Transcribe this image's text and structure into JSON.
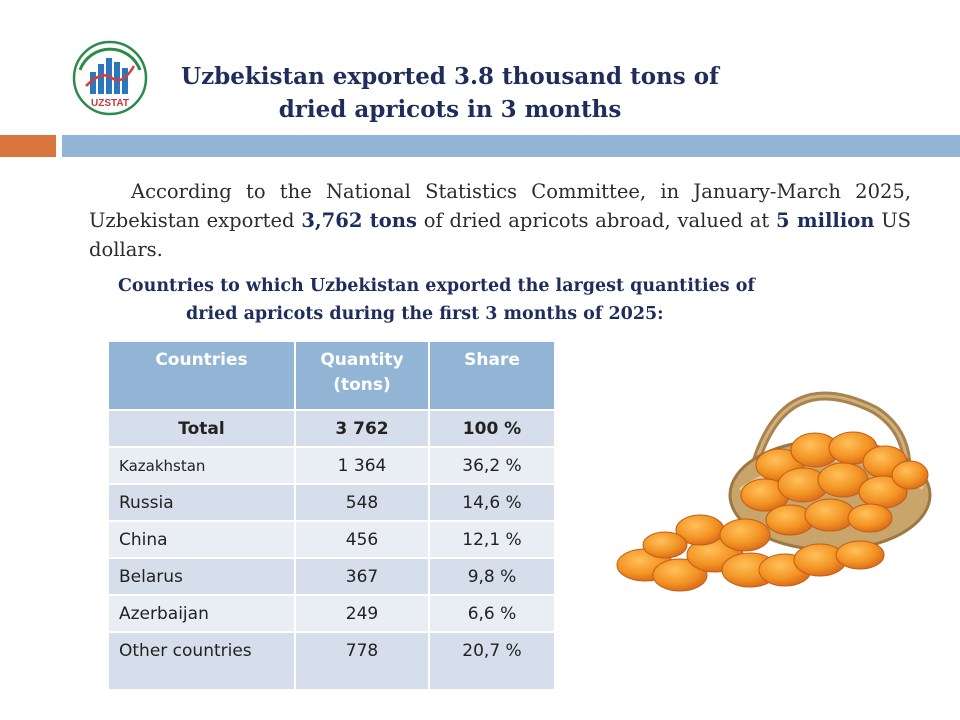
{
  "logo": {
    "text": "UZSTAT"
  },
  "title": "Uzbekistan exported 3.8 thousand tons of dried apricots in 3 months",
  "intro": {
    "part1": "According to the National Statistics Committee, in January-March 2025, Uzbekistan exported ",
    "amount": "3,762 tons",
    "part2": " of dried apricots abroad, valued at ",
    "value": "5 million",
    "part3": " US dollars."
  },
  "subtitle": {
    "line1": "Countries to which Uzbekistan exported the largest quantities of",
    "line2": "dried apricots during the first 3 months of 2025:"
  },
  "table": {
    "headers": [
      "Countries",
      "Quantity (tons)",
      "Share"
    ],
    "total": {
      "country": "Total",
      "quantity": "3 762",
      "share": "100 %"
    },
    "rows": [
      {
        "country": "Kazakhstan",
        "quantity": "1 364",
        "share": "36,2 %"
      },
      {
        "country": "Russia",
        "quantity": "548",
        "share": "14,6 %"
      },
      {
        "country": "China",
        "quantity": "456",
        "share": "12,1 %"
      },
      {
        "country": "Belarus",
        "quantity": "367",
        "share": "9,8 %"
      },
      {
        "country": "Azerbaijan",
        "quantity": "249",
        "share": "6,6 %"
      },
      {
        "country": "Other countries",
        "quantity": "778",
        "share": "20,7 %"
      }
    ]
  },
  "colors": {
    "title": "#1f2d5c",
    "header_fill": "#93b5d5",
    "accent_orange": "#d9763d",
    "row_dark": "#d5deea",
    "row_light": "#e9eef4"
  },
  "image": "dried-apricots-basket"
}
